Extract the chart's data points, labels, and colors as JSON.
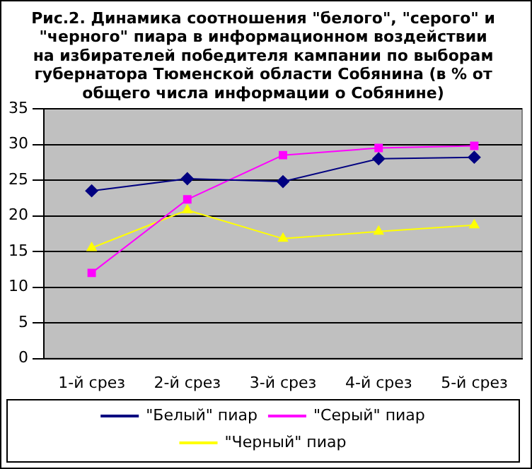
{
  "chart_data": {
    "type": "line",
    "title": "Рис.2. Динамика соотношения \"белого\", \"серого\" и \"черного\" пиара в информационном воздействии на избирателей победителя кампании по выборам губернатора Тюменской области Собянина (в % от общего числа информации о Собянине)",
    "categories": [
      "1-й срез",
      "2-й срез",
      "3-й срез",
      "4-й срез",
      "5-й срез"
    ],
    "series": [
      {
        "name": "\"Белый\" пиар",
        "color": "#000080",
        "marker": "diamond",
        "values": [
          23.5,
          25.2,
          24.8,
          28,
          28.2
        ]
      },
      {
        "name": "\"Серый\" пиар",
        "color": "#ff00ff",
        "marker": "square",
        "values": [
          12,
          22.3,
          28.5,
          29.5,
          29.8
        ]
      },
      {
        "name": "\"Черный\" пиар",
        "color": "#ffff00",
        "marker": "triangle",
        "values": [
          15.5,
          20.8,
          16.8,
          17.8,
          18.7
        ]
      }
    ],
    "ylim": [
      0,
      35
    ],
    "yticks": [
      0,
      5,
      10,
      15,
      20,
      25,
      30,
      35
    ],
    "grid": "y",
    "legend": "bottom"
  }
}
